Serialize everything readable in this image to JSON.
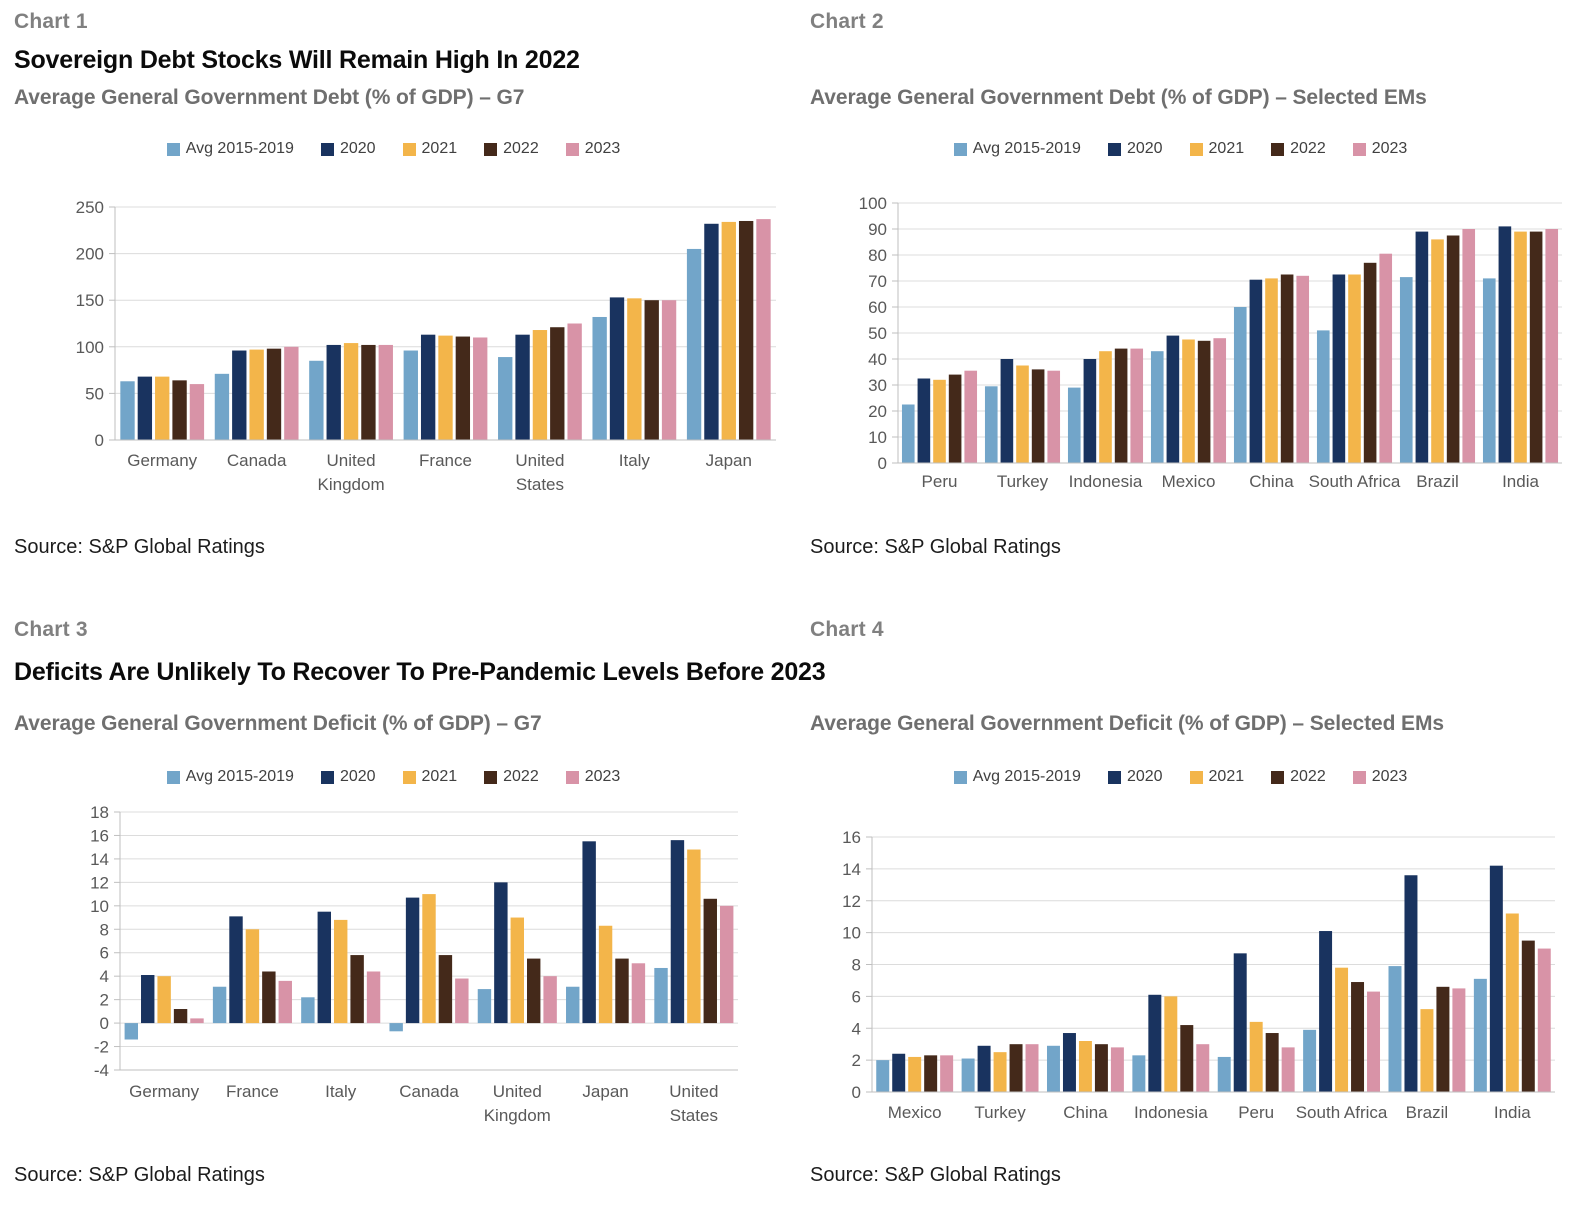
{
  "style": {
    "grid_color": "#DCDCDC",
    "axis_color": "#BFBFBF",
    "tick_text_color": "#595959",
    "legend_text_color": "#404040",
    "palette": {
      "avg_2015_2019": "#72A5C9",
      "y2020": "#19335F",
      "y2021": "#F3B54A",
      "y2022": "#44291A",
      "y2023": "#D893A7"
    }
  },
  "chart_data": [
    {
      "kicker": "Chart 1",
      "title": "Sovereign Debt Stocks Will Remain High In 2022",
      "subtitle": "Average General Government Debt (% of GDP) – G7",
      "source": "Source: S&P Global Ratings",
      "type": "bar",
      "grid": true,
      "legend_position": "top",
      "ylim": [
        0,
        250
      ],
      "yticks": [
        0,
        50,
        100,
        150,
        200,
        250
      ],
      "categories": [
        "Germany",
        "Canada",
        "United\nKingdom",
        "France",
        "United\nStates",
        "Italy",
        "Japan"
      ],
      "series": [
        {
          "name": "Avg 2015-2019",
          "color": "#72A5C9",
          "values": [
            63,
            71,
            85,
            96,
            89,
            132,
            205
          ]
        },
        {
          "name": "2020",
          "color": "#19335F",
          "values": [
            68,
            96,
            102,
            113,
            113,
            153,
            232
          ]
        },
        {
          "name": "2021",
          "color": "#F3B54A",
          "values": [
            68,
            97,
            104,
            112,
            118,
            152,
            234
          ]
        },
        {
          "name": "2022",
          "color": "#44291A",
          "values": [
            64,
            98,
            102,
            111,
            121,
            150,
            235
          ]
        },
        {
          "name": "2023",
          "color": "#D893A7",
          "values": [
            60,
            100,
            102,
            110,
            125,
            150,
            237
          ]
        }
      ]
    },
    {
      "kicker": "Chart 2",
      "title": "",
      "subtitle": "Average General Government Debt (% of GDP) – Selected EMs",
      "source": "Source: S&P Global Ratings",
      "type": "bar",
      "grid": true,
      "legend_position": "top",
      "ylim": [
        0,
        100
      ],
      "yticks": [
        0,
        10,
        20,
        30,
        40,
        50,
        60,
        70,
        80,
        90,
        100
      ],
      "categories": [
        "Peru",
        "Turkey",
        "Indonesia",
        "Mexico",
        "China",
        "South Africa",
        "Brazil",
        "India"
      ],
      "series": [
        {
          "name": "Avg 2015-2019",
          "color": "#72A5C9",
          "values": [
            22.5,
            29.5,
            29,
            43,
            60,
            51,
            71.5,
            71
          ]
        },
        {
          "name": "2020",
          "color": "#19335F",
          "values": [
            32.5,
            40,
            40,
            49,
            70.5,
            72.5,
            89,
            91
          ]
        },
        {
          "name": "2021",
          "color": "#F3B54A",
          "values": [
            32,
            37.5,
            43,
            47.5,
            71,
            72.5,
            86,
            89
          ]
        },
        {
          "name": "2022",
          "color": "#44291A",
          "values": [
            34,
            36,
            44,
            47,
            72.5,
            77,
            87.5,
            89
          ]
        },
        {
          "name": "2023",
          "color": "#D893A7",
          "values": [
            35.5,
            35.5,
            44,
            48,
            72,
            80.5,
            90,
            90
          ]
        }
      ]
    },
    {
      "kicker": "Chart 3",
      "title": "Deficits Are Unlikely To Recover To Pre-Pandemic Levels Before 2023",
      "subtitle": "Average General Government Deficit (% of GDP) – G7",
      "source": "Source: S&P Global Ratings",
      "type": "bar",
      "grid": true,
      "legend_position": "top",
      "ylim": [
        -4,
        18
      ],
      "yticks": [
        -4,
        -2,
        0,
        2,
        4,
        6,
        8,
        10,
        12,
        14,
        16,
        18
      ],
      "categories": [
        "Germany",
        "France",
        "Italy",
        "Canada",
        "United\nKingdom",
        "Japan",
        "United\nStates"
      ],
      "series": [
        {
          "name": "Avg 2015-2019",
          "color": "#72A5C9",
          "values": [
            -1.4,
            3.1,
            2.2,
            -0.7,
            2.9,
            3.1,
            4.7
          ]
        },
        {
          "name": "2020",
          "color": "#19335F",
          "values": [
            4.1,
            9.1,
            9.5,
            10.7,
            12.0,
            15.5,
            15.6
          ]
        },
        {
          "name": "2021",
          "color": "#F3B54A",
          "values": [
            4.0,
            8.0,
            8.8,
            11.0,
            9.0,
            8.3,
            14.8
          ]
        },
        {
          "name": "2022",
          "color": "#44291A",
          "values": [
            1.2,
            4.4,
            5.8,
            5.8,
            5.5,
            5.5,
            10.6
          ]
        },
        {
          "name": "2023",
          "color": "#D893A7",
          "values": [
            0.4,
            3.6,
            4.4,
            3.8,
            4.0,
            5.1,
            10.0
          ]
        }
      ]
    },
    {
      "kicker": "Chart 4",
      "title": "",
      "subtitle": "Average General Government Deficit (% of GDP) – Selected EMs",
      "source": "Source: S&P Global Ratings",
      "type": "bar",
      "grid": true,
      "legend_position": "top",
      "ylim": [
        0,
        16
      ],
      "yticks": [
        0,
        2,
        4,
        6,
        8,
        10,
        12,
        14,
        16
      ],
      "categories": [
        "Mexico",
        "Turkey",
        "China",
        "Indonesia",
        "Peru",
        "South Africa",
        "Brazil",
        "India"
      ],
      "series": [
        {
          "name": "Avg 2015-2019",
          "color": "#72A5C9",
          "values": [
            2.0,
            2.1,
            2.9,
            2.3,
            2.2,
            3.9,
            7.9,
            7.1
          ]
        },
        {
          "name": "2020",
          "color": "#19335F",
          "values": [
            2.4,
            2.9,
            3.7,
            6.1,
            8.7,
            10.1,
            13.6,
            14.2
          ]
        },
        {
          "name": "2021",
          "color": "#F3B54A",
          "values": [
            2.2,
            2.5,
            3.2,
            6.0,
            4.4,
            7.8,
            5.2,
            11.2
          ]
        },
        {
          "name": "2022",
          "color": "#44291A",
          "values": [
            2.3,
            3.0,
            3.0,
            4.2,
            3.7,
            6.9,
            6.6,
            9.5
          ]
        },
        {
          "name": "2023",
          "color": "#D893A7",
          "values": [
            2.3,
            3.0,
            2.8,
            3.0,
            2.8,
            6.3,
            6.5,
            9.0
          ]
        }
      ]
    }
  ]
}
